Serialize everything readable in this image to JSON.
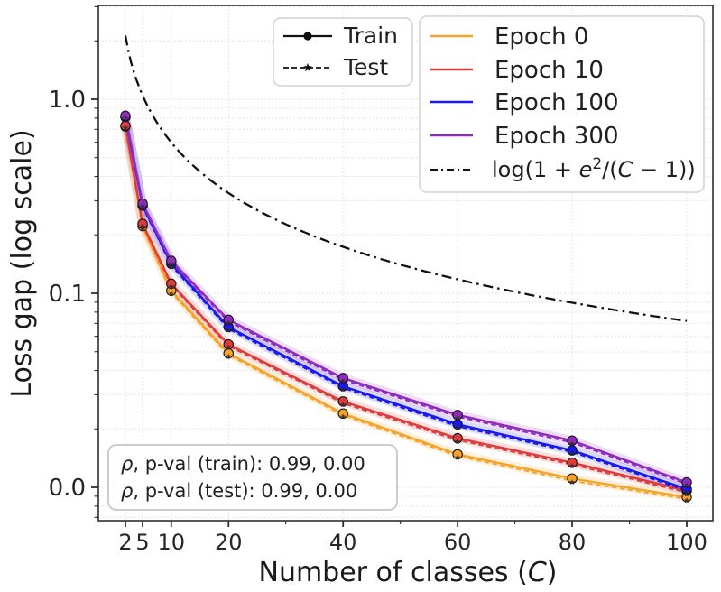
{
  "chart_data": {
    "type": "line",
    "title": "",
    "xlabel": "Number of classes (C)",
    "xlabel_parts": {
      "prefix": "Number of classes  (",
      "var": "C",
      "suffix": ")"
    },
    "ylabel": "Loss gap (log scale)",
    "x_scale": "linear",
    "y_scale": "log",
    "xlim": [
      -2.7,
      104.6
    ],
    "ylim": [
      0.0068,
      3.0
    ],
    "grid": true,
    "xticks": [
      2,
      5,
      10,
      20,
      40,
      60,
      80,
      100
    ],
    "xtick_labels": [
      "2",
      "5",
      "10",
      "20",
      "40",
      "60",
      "80",
      "100"
    ],
    "x_minor_ticks": [
      30,
      50,
      70,
      90
    ],
    "ytick_labels": [
      {
        "value": 1.0,
        "label": "1.0"
      },
      {
        "value": 0.1,
        "label": "0.1"
      },
      {
        "value": 0.01,
        "label": "0.0"
      }
    ],
    "x": [
      2,
      5,
      10,
      20,
      40,
      60,
      80,
      100
    ],
    "series": [
      {
        "name": "Epoch 0",
        "color": "#F6A32B",
        "train": [
          0.725,
          0.222,
          0.103,
          0.049,
          0.024,
          0.0148,
          0.0111,
          0.0089
        ],
        "test": [
          0.718,
          0.219,
          0.101,
          0.048,
          0.0235,
          0.0145,
          0.0108,
          0.0087
        ]
      },
      {
        "name": "Epoch 10",
        "color": "#DE3B3B",
        "train": [
          0.731,
          0.228,
          0.112,
          0.0545,
          0.0277,
          0.0179,
          0.0134,
          0.0096
        ],
        "test": [
          0.723,
          0.225,
          0.11,
          0.0535,
          0.0271,
          0.0175,
          0.0131,
          0.0094
        ]
      },
      {
        "name": "Epoch 100",
        "color": "#1A18EE",
        "train": [
          0.81,
          0.283,
          0.142,
          0.067,
          0.0332,
          0.0211,
          0.0155,
          0.0098
        ],
        "test": [
          0.802,
          0.279,
          0.139,
          0.0655,
          0.0325,
          0.0206,
          0.0152,
          0.0096
        ]
      },
      {
        "name": "Epoch 300",
        "color": "#8F2BBE",
        "train": [
          0.822,
          0.29,
          0.147,
          0.073,
          0.0366,
          0.0236,
          0.0174,
          0.0106
        ],
        "test": [
          0.814,
          0.286,
          0.144,
          0.0715,
          0.0358,
          0.0231,
          0.017,
          0.0104
        ]
      }
    ],
    "style_legend": [
      {
        "label": "Train",
        "line": "solid",
        "marker": "circle"
      },
      {
        "label": "Test",
        "line": "dashed",
        "marker": "star"
      }
    ],
    "reference_curve": {
      "formula": "log(1 + e^2/(C − 1))",
      "parts": {
        "p1": "log(1 + ",
        "e": "e",
        "sup": "2",
        "p2": "/(",
        "C": "C",
        "p3": " − 1))"
      },
      "color": "#111111",
      "style": "dashdot"
    },
    "annotation": {
      "rho": "ρ",
      "line1_rest": ", p-val (train):  0.99, 0.00",
      "line2_rest": ", p-val (test):  0.99, 0.00"
    },
    "legend_position": "upper right",
    "colors": {
      "grid": "#dcdcdc",
      "spine": "#2e2e2e",
      "background": "#ffffff"
    }
  }
}
